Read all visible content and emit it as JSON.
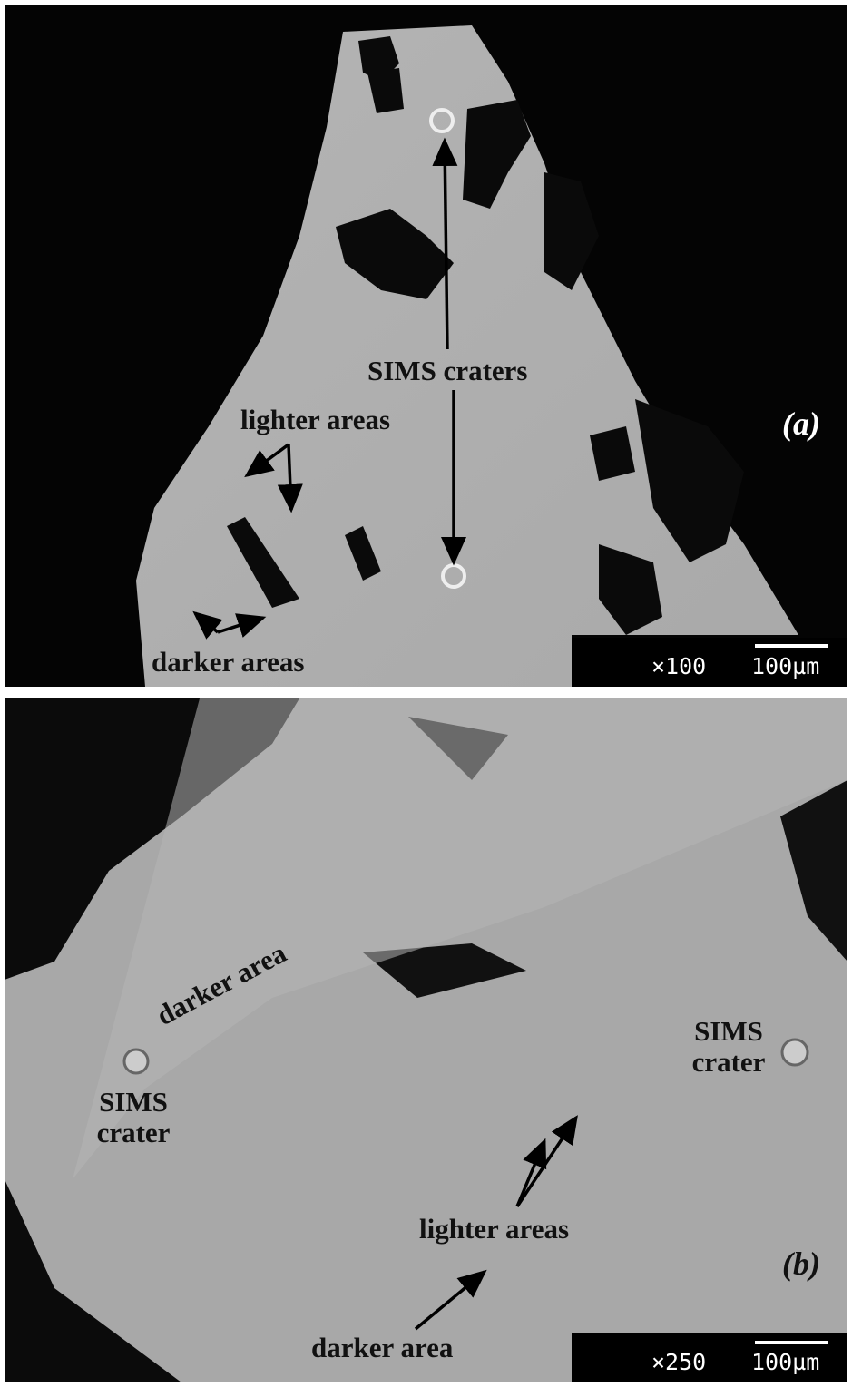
{
  "panels": [
    {
      "label": "(a)",
      "annotations": [
        "SIMS craters",
        "lighter areas",
        "darker areas"
      ],
      "magnification": "×100",
      "scale": "100µm"
    },
    {
      "label": "(b)",
      "annotations": [
        "darker area",
        "SIMS crater",
        "SIMS crater",
        "lighter areas",
        "darker area"
      ],
      "magnification": "×250",
      "scale": "100µm"
    }
  ]
}
